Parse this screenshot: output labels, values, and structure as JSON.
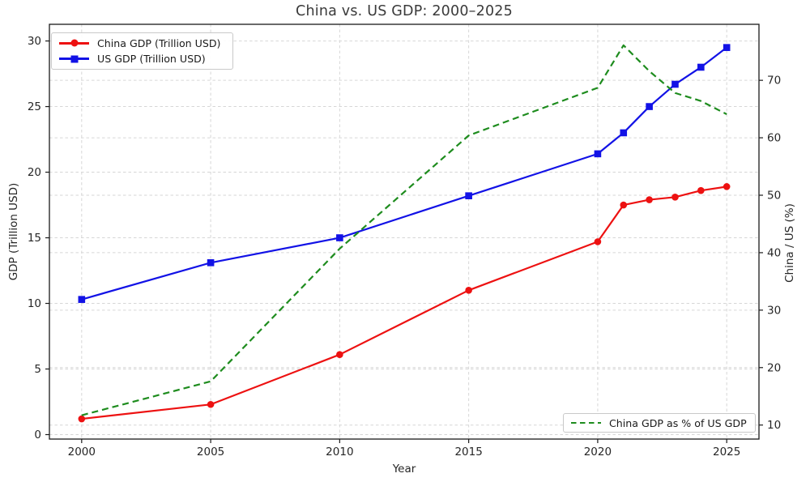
{
  "figure": {
    "title": "China vs. US GDP: 2000–2025",
    "xlabel": "Year",
    "ylabel_left": "GDP (Trillion USD)",
    "ylabel_right": "China / US (%)"
  },
  "colors": {
    "china": "#ed1111",
    "us": "#1212e6",
    "ratio": "#1e8c1e",
    "grid": "#d6d6d6",
    "spine": "#1a1a1a",
    "tick_label": "#262626",
    "title": "#3a3a3a",
    "legend_border": "#c9c9c9"
  },
  "chart_data": {
    "type": "line",
    "title": "China vs. US GDP: 2000–2025",
    "xlabel": "Year",
    "ylabel_left": "GDP (Trillion USD)",
    "ylabel_right": "China / US (%)",
    "x": [
      2000,
      2005,
      2010,
      2015,
      2020,
      2021,
      2022,
      2023,
      2024,
      2025
    ],
    "series": [
      {
        "name": "China GDP (Trillion USD)",
        "axis": "left",
        "color": "#ed1111",
        "marker": "circle",
        "style": "solid",
        "values": [
          1.2,
          2.3,
          6.1,
          11.0,
          14.7,
          17.5,
          17.9,
          18.1,
          18.6,
          18.9
        ]
      },
      {
        "name": "US GDP (Trillion USD)",
        "axis": "left",
        "color": "#1212e6",
        "marker": "square",
        "style": "solid",
        "values": [
          10.3,
          13.1,
          15.0,
          18.2,
          21.4,
          23.0,
          25.0,
          26.7,
          28.0,
          29.5
        ]
      },
      {
        "name": "China GDP as % of US GDP",
        "axis": "right",
        "color": "#1e8c1e",
        "marker": "none",
        "style": "dashed",
        "values": [
          11.7,
          17.6,
          40.7,
          60.4,
          68.7,
          76.1,
          71.6,
          67.8,
          66.4,
          64.1
        ]
      }
    ],
    "x_ticks": [
      2000,
      2005,
      2010,
      2015,
      2020,
      2025
    ],
    "left_ticks": [
      0,
      5,
      10,
      15,
      20,
      25,
      30
    ],
    "right_ticks": [
      10,
      20,
      30,
      40,
      50,
      60,
      70
    ],
    "xlim": [
      1998.75,
      2026.25
    ],
    "ylim_left": [
      -0.34,
      31.27
    ],
    "ylim_right": [
      7.56,
      79.75
    ],
    "grid": true,
    "legend_positions": [
      "upper left",
      "lower right"
    ]
  }
}
